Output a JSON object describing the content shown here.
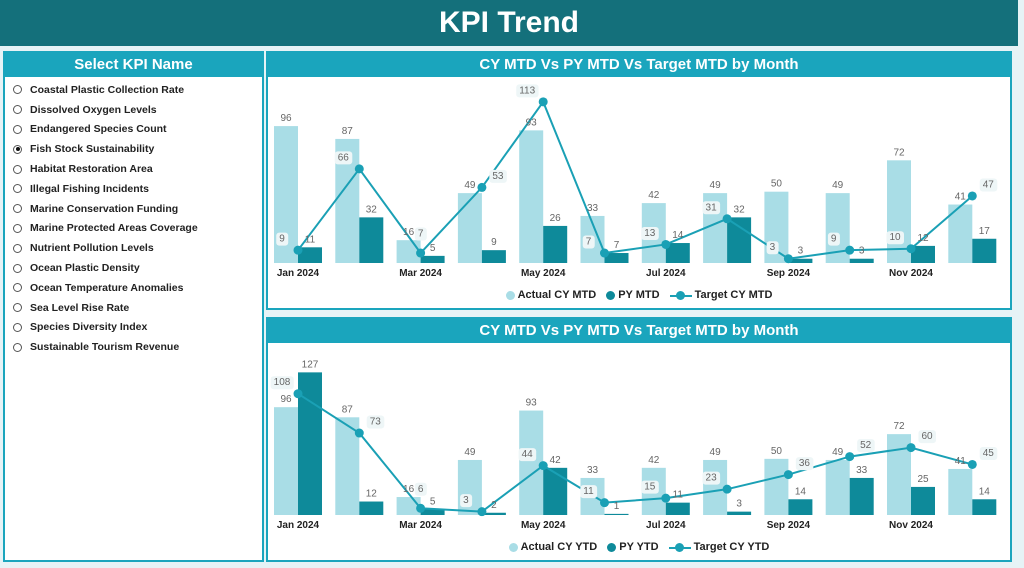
{
  "header": {
    "title": "KPI Trend"
  },
  "sidebar": {
    "title": "Select KPI Name",
    "selected": "Fish Stock Sustainability",
    "items": [
      "Coastal Plastic Collection Rate",
      "Dissolved Oxygen Levels",
      "Endangered Species Count",
      "Fish Stock Sustainability",
      "Habitat Restoration Area",
      "Illegal Fishing Incidents",
      "Marine Conservation Funding",
      "Marine Protected Areas Coverage",
      "Nutrient Pollution Levels",
      "Ocean Plastic Density",
      "Ocean Temperature Anomalies",
      "Sea Level Rise Rate",
      "Species Diversity Index",
      "Sustainable Tourism Revenue"
    ]
  },
  "colors": {
    "actual": "#a9dde6",
    "py": "#0e8a9a",
    "target": "#1aa0b5"
  },
  "chart_data": [
    {
      "type": "bar",
      "title": "CY MTD Vs PY MTD Vs Target MTD by Month",
      "categories": [
        "Jan 2024",
        "Feb 2024",
        "Mar 2024",
        "Apr 2024",
        "May 2024",
        "Jun 2024",
        "Jul 2024",
        "Aug 2024",
        "Sep 2024",
        "Oct 2024",
        "Nov 2024",
        "Dec 2024"
      ],
      "tick_labels": [
        "Jan 2024",
        "",
        "Mar 2024",
        "",
        "May 2024",
        "",
        "Jul 2024",
        "",
        "Sep 2024",
        "",
        "Nov 2024",
        ""
      ],
      "ylim": [
        0,
        115
      ],
      "legend": "bottom",
      "series": [
        {
          "name": "Actual CY MTD",
          "kind": "bar",
          "values": [
            96,
            87,
            16,
            49,
            93,
            33,
            42,
            49,
            50,
            49,
            72,
            41
          ]
        },
        {
          "name": "PY MTD",
          "kind": "bar",
          "values": [
            11,
            32,
            5,
            9,
            26,
            7,
            14,
            32,
            3,
            3,
            12,
            17
          ]
        },
        {
          "name": "Target CY MTD",
          "kind": "line",
          "values": [
            9,
            66,
            7,
            53,
            113,
            7,
            13,
            31,
            3,
            9,
            10,
            47
          ]
        }
      ]
    },
    {
      "type": "bar",
      "title": "CY MTD Vs PY MTD Vs Target MTD by Month",
      "categories": [
        "Jan 2024",
        "Feb 2024",
        "Mar 2024",
        "Apr 2024",
        "May 2024",
        "Jun 2024",
        "Jul 2024",
        "Aug 2024",
        "Sep 2024",
        "Oct 2024",
        "Nov 2024",
        "Dec 2024"
      ],
      "tick_labels": [
        "Jan 2024",
        "",
        "Mar 2024",
        "",
        "May 2024",
        "",
        "Jul 2024",
        "",
        "Sep 2024",
        "",
        "Nov 2024",
        ""
      ],
      "ylim": [
        0,
        130
      ],
      "legend": "bottom",
      "series": [
        {
          "name": "Actual CY YTD",
          "kind": "bar",
          "values": [
            96,
            87,
            16,
            49,
            93,
            33,
            42,
            49,
            50,
            49,
            72,
            41
          ]
        },
        {
          "name": "PY YTD",
          "kind": "bar",
          "values": [
            127,
            12,
            5,
            2,
            42,
            1,
            11,
            3,
            14,
            33,
            25,
            14
          ]
        },
        {
          "name": "Target CY YTD",
          "kind": "line",
          "values": [
            108,
            73,
            6,
            3,
            44,
            11,
            15,
            23,
            36,
            52,
            60,
            45
          ]
        }
      ]
    }
  ]
}
